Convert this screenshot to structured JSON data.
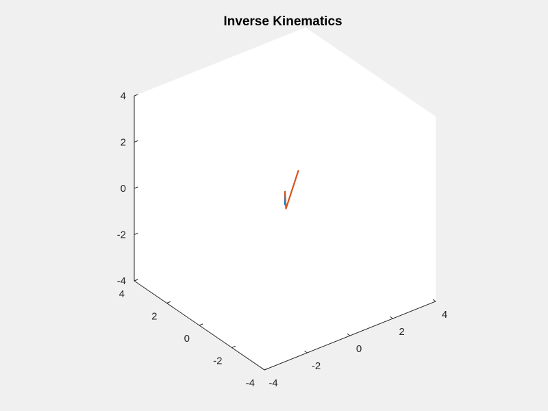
{
  "chart_data": {
    "type": "line",
    "projection": "3d-isometric",
    "title": "Inverse Kinematics",
    "xlabel": "",
    "ylabel": "",
    "zlabel": "",
    "xlim": [
      -4,
      4
    ],
    "ylim": [
      -4,
      4
    ],
    "zlim": [
      -4,
      4
    ],
    "x_ticks": [
      -4,
      -2,
      0,
      2,
      4
    ],
    "y_ticks": [
      -4,
      -2,
      0,
      2,
      4
    ],
    "z_ticks": [
      -4,
      -2,
      0,
      2,
      4
    ],
    "x_tick_labels": [
      "-4",
      "-2",
      "0",
      "2",
      "4"
    ],
    "y_tick_labels": [
      "-4",
      "-2",
      "0",
      "2",
      "4"
    ],
    "z_tick_labels": [
      "-4",
      "-2",
      "0",
      "2",
      "4"
    ],
    "grid": false,
    "series": [
      {
        "color": "#0072bd",
        "points": [
          [
            0,
            0,
            -0.25
          ],
          [
            0,
            0,
            0.3
          ]
        ]
      },
      {
        "color": "#d95319",
        "points": [
          [
            0,
            0,
            0.3
          ],
          [
            0.2,
            0.2,
            -0.6
          ],
          [
            0.7,
            0.1,
            0.9
          ]
        ]
      }
    ]
  }
}
